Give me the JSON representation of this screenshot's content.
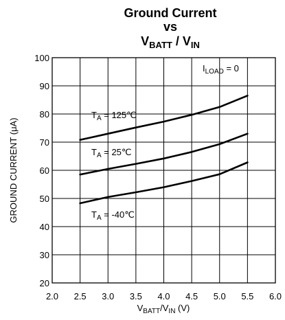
{
  "chart_data": {
    "type": "line",
    "title": {
      "line1": "Ground Current",
      "line2": "vs",
      "line3": {
        "v": "V",
        "batt": "BATT",
        "sep": " / V",
        "in": "IN"
      }
    },
    "xlabel": {
      "v": "V",
      "batt": "BATT",
      "sep": "/V",
      "in": "IN",
      "unit": " (V)"
    },
    "ylabel": "GROUND CURRENT (μA)",
    "xlim": [
      2.0,
      6.0
    ],
    "ylim": [
      20,
      100
    ],
    "x_ticks": [
      "2.0",
      "2.5",
      "3.0",
      "3.5",
      "4.0",
      "4.5",
      "5.0",
      "5.5",
      "6.0"
    ],
    "y_ticks": [
      "20",
      "30",
      "40",
      "50",
      "60",
      "70",
      "80",
      "90",
      "100"
    ],
    "grid": true,
    "condition": {
      "i": "I",
      "sub": "LOAD",
      "rest": " = 0"
    },
    "series": [
      {
        "name": "T_A = 125℃",
        "x": [
          2.5,
          3.0,
          3.5,
          4.0,
          4.5,
          5.0,
          5.5
        ],
        "values": [
          70.8,
          73.0,
          75.2,
          77.3,
          79.7,
          82.5,
          86.5
        ]
      },
      {
        "name": "T_A = 25℃",
        "x": [
          2.5,
          3.0,
          3.5,
          4.0,
          4.5,
          5.0,
          5.5
        ],
        "values": [
          58.5,
          60.5,
          62.3,
          64.2,
          66.5,
          69.3,
          73.0
        ]
      },
      {
        "name": "T_A = -40℃",
        "x": [
          2.5,
          3.0,
          3.5,
          4.0,
          4.5,
          5.0,
          5.5
        ],
        "values": [
          48.3,
          50.5,
          52.2,
          54.0,
          56.2,
          58.6,
          62.8
        ]
      }
    ],
    "series_labels": [
      {
        "t": "T",
        "sub": "A",
        "rest": " = 125℃"
      },
      {
        "t": "T",
        "sub": "A",
        "rest": " = 25℃"
      },
      {
        "t": "T",
        "sub": "A",
        "rest": " = -40℃"
      }
    ]
  }
}
